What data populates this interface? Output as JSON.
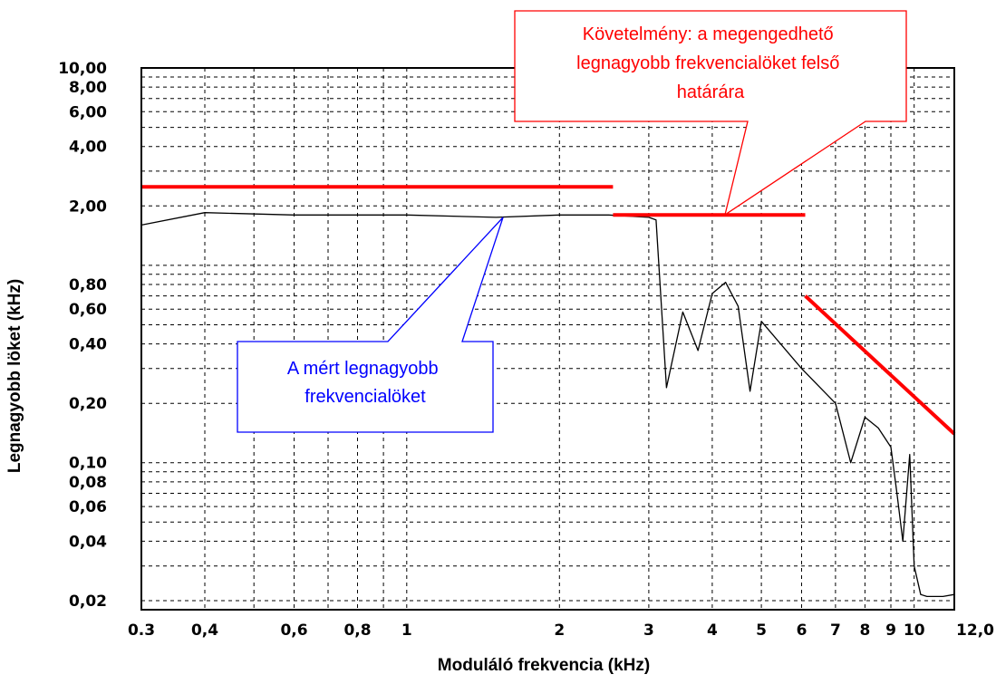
{
  "chart_data": {
    "type": "line",
    "x_scale": "log",
    "y_scale": "log",
    "xlabel": "Moduláló frekvencia (kHz)",
    "ylabel": "Legnagyobb löket (kHz)",
    "xlim": [
      0.3,
      12.0
    ],
    "ylim": [
      0.018,
      10.0
    ],
    "grid": true,
    "x_ticks": [
      {
        "value": 0.3,
        "label": "0.3"
      },
      {
        "value": 0.4,
        "label": "0,4"
      },
      {
        "value": 0.6,
        "label": "0,6"
      },
      {
        "value": 0.8,
        "label": "0,8"
      },
      {
        "value": 1,
        "label": "1"
      },
      {
        "value": 2,
        "label": "2"
      },
      {
        "value": 3,
        "label": "3"
      },
      {
        "value": 4,
        "label": "4"
      },
      {
        "value": 5,
        "label": "5"
      },
      {
        "value": 6,
        "label": "6"
      },
      {
        "value": 7,
        "label": "7"
      },
      {
        "value": 8,
        "label": "8"
      },
      {
        "value": 9,
        "label": "9"
      },
      {
        "value": 10,
        "label": "10"
      },
      {
        "value": 12,
        "label": "12,0"
      }
    ],
    "y_ticks": [
      {
        "value": 10,
        "label": "10,00"
      },
      {
        "value": 8,
        "label": "8,00"
      },
      {
        "value": 6,
        "label": "6,00"
      },
      {
        "value": 4,
        "label": "4,00"
      },
      {
        "value": 2,
        "label": "2,00"
      },
      {
        "value": 0.8,
        "label": "0,80"
      },
      {
        "value": 0.6,
        "label": "0,60"
      },
      {
        "value": 0.4,
        "label": "0,40"
      },
      {
        "value": 0.2,
        "label": "0,20"
      },
      {
        "value": 0.1,
        "label": "0,10"
      },
      {
        "value": 0.08,
        "label": "0,08"
      },
      {
        "value": 0.06,
        "label": "0,06"
      },
      {
        "value": 0.04,
        "label": "0,04"
      },
      {
        "value": 0.02,
        "label": "0,02"
      }
    ],
    "x_grid": [
      0.3,
      0.4,
      0.5,
      0.6,
      0.7,
      0.8,
      0.9,
      1,
      2,
      3,
      4,
      5,
      6,
      7,
      8,
      9,
      10,
      12
    ],
    "y_grid": [
      0.02,
      0.03,
      0.04,
      0.05,
      0.06,
      0.07,
      0.08,
      0.09,
      0.1,
      0.2,
      0.3,
      0.4,
      0.5,
      0.6,
      0.7,
      0.8,
      0.9,
      1,
      2,
      3,
      4,
      5,
      6,
      7,
      8,
      9,
      10
    ],
    "series": [
      {
        "color": "#000000",
        "x": [
          0.3,
          0.4,
          0.6,
          1.0,
          1.5,
          2.0,
          2.5,
          3.0,
          3.1,
          3.25,
          3.5,
          3.75,
          4.0,
          4.25,
          4.5,
          4.75,
          5.0,
          6.0,
          7.0,
          7.5,
          8.0,
          8.5,
          9.0,
          9.25,
          9.5,
          9.8,
          10.0,
          10.3,
          10.6,
          11.4,
          12.0
        ],
        "y": [
          1.6,
          1.85,
          1.8,
          1.8,
          1.75,
          1.8,
          1.8,
          1.75,
          1.7,
          0.24,
          0.58,
          0.37,
          0.72,
          0.82,
          0.62,
          0.23,
          0.52,
          0.3,
          0.2,
          0.1,
          0.17,
          0.15,
          0.12,
          0.07,
          0.04,
          0.11,
          0.03,
          0.0215,
          0.021,
          0.021,
          0.0215
        ]
      },
      {
        "color": "#ff0000",
        "x": [
          0.3,
          2.55
        ],
        "y": [
          2.5,
          2.5
        ]
      },
      {
        "color": "#ff0000",
        "x": [
          2.55,
          6.1
        ],
        "y": [
          1.8,
          1.8
        ]
      },
      {
        "color": "#ff0000",
        "x": [
          6.1,
          12.0
        ],
        "y": [
          0.7,
          0.14
        ]
      }
    ],
    "annotations": [
      {
        "text": "A mért legnagyobb frekvencialöket",
        "color": "#0000ff",
        "target": {
          "x": 1.5,
          "y": 1.8
        }
      },
      {
        "text": "Követelmény: a megengedhető legnagyobb frekvencialöket felső határára",
        "color": "#ff0000",
        "target": {
          "x": 4.0,
          "y": 1.8
        }
      }
    ]
  }
}
